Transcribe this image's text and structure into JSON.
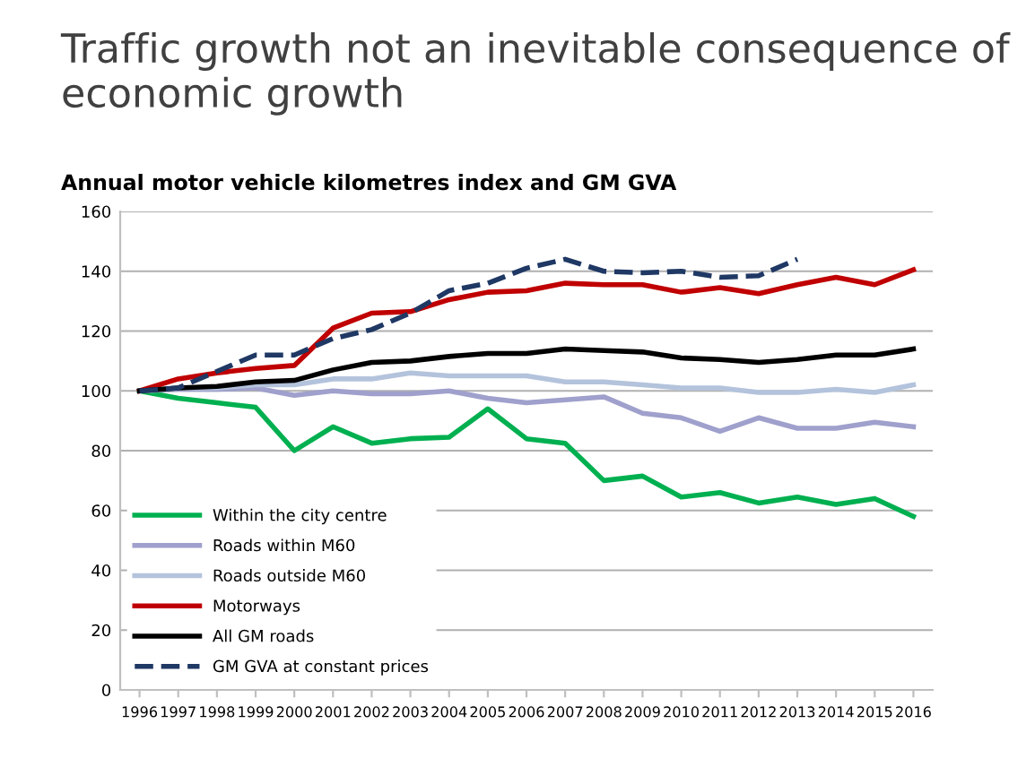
{
  "chart_data": {
    "type": "line",
    "title": "Traffic growth not an inevitable consequence of economic growth",
    "subtitle": "Annual motor vehicle kilometres index and GM GVA",
    "categories": [
      "1996",
      "1997",
      "1998",
      "1999",
      "2000",
      "2001",
      "2002",
      "2003",
      "2004",
      "2005",
      "2006",
      "2007",
      "2008",
      "2009",
      "2010",
      "2011",
      "2012",
      "2013",
      "2014",
      "2015",
      "2016"
    ],
    "series": [
      {
        "name": "Within the city centre",
        "color": "#00b050",
        "values": [
          100,
          97.5,
          96,
          94.5,
          80,
          88,
          82.5,
          84,
          84.5,
          94,
          84,
          82.5,
          70,
          71.5,
          64.5,
          66,
          62.5,
          64.5,
          62,
          64,
          58
        ]
      },
      {
        "name": "Roads within M60",
        "color": "#9fa0cc",
        "values": [
          100,
          100.5,
          100.5,
          101,
          98.5,
          100,
          99,
          99,
          100,
          97.5,
          96,
          97,
          98,
          92.5,
          91,
          86.5,
          91,
          87.5,
          87.5,
          89.5,
          88
        ]
      },
      {
        "name": "Roads outside M60",
        "color": "#b4c3dc",
        "values": [
          100,
          101,
          101,
          102,
          102,
          104,
          104,
          106,
          105,
          105,
          105,
          103,
          103,
          102,
          101,
          101,
          99.5,
          99.5,
          100.5,
          99.5,
          102
        ]
      },
      {
        "name": "Motorways",
        "color": "#c00000",
        "values": [
          100,
          104,
          106,
          107.5,
          108.5,
          121,
          126,
          126.5,
          130.5,
          133,
          133.5,
          136,
          135.5,
          135.5,
          133,
          134.5,
          132.5,
          135.5,
          138,
          135.5,
          140.5
        ]
      },
      {
        "name": "All GM roads",
        "color": "#000000",
        "values": [
          100,
          101,
          101.5,
          103,
          103.5,
          107,
          109.5,
          110,
          111.5,
          112.5,
          112.5,
          114,
          113.5,
          113,
          111,
          110.5,
          109.5,
          110.5,
          112,
          112,
          114
        ]
      },
      {
        "name": "GM GVA at constant prices",
        "color": "#1f3864",
        "line_style": "dashed",
        "values": [
          100,
          101,
          106.5,
          112,
          112,
          117.5,
          120.5,
          126,
          133.5,
          136,
          141,
          144,
          140,
          139.5,
          140,
          138,
          138.5,
          144,
          null,
          null,
          null
        ]
      }
    ],
    "ylim": [
      0,
      160
    ],
    "yticks": [
      0,
      20,
      40,
      60,
      80,
      100,
      120,
      140,
      160
    ],
    "grid": "y",
    "legend": "bottom left",
    "line_style": "solid",
    "marker": "none"
  }
}
